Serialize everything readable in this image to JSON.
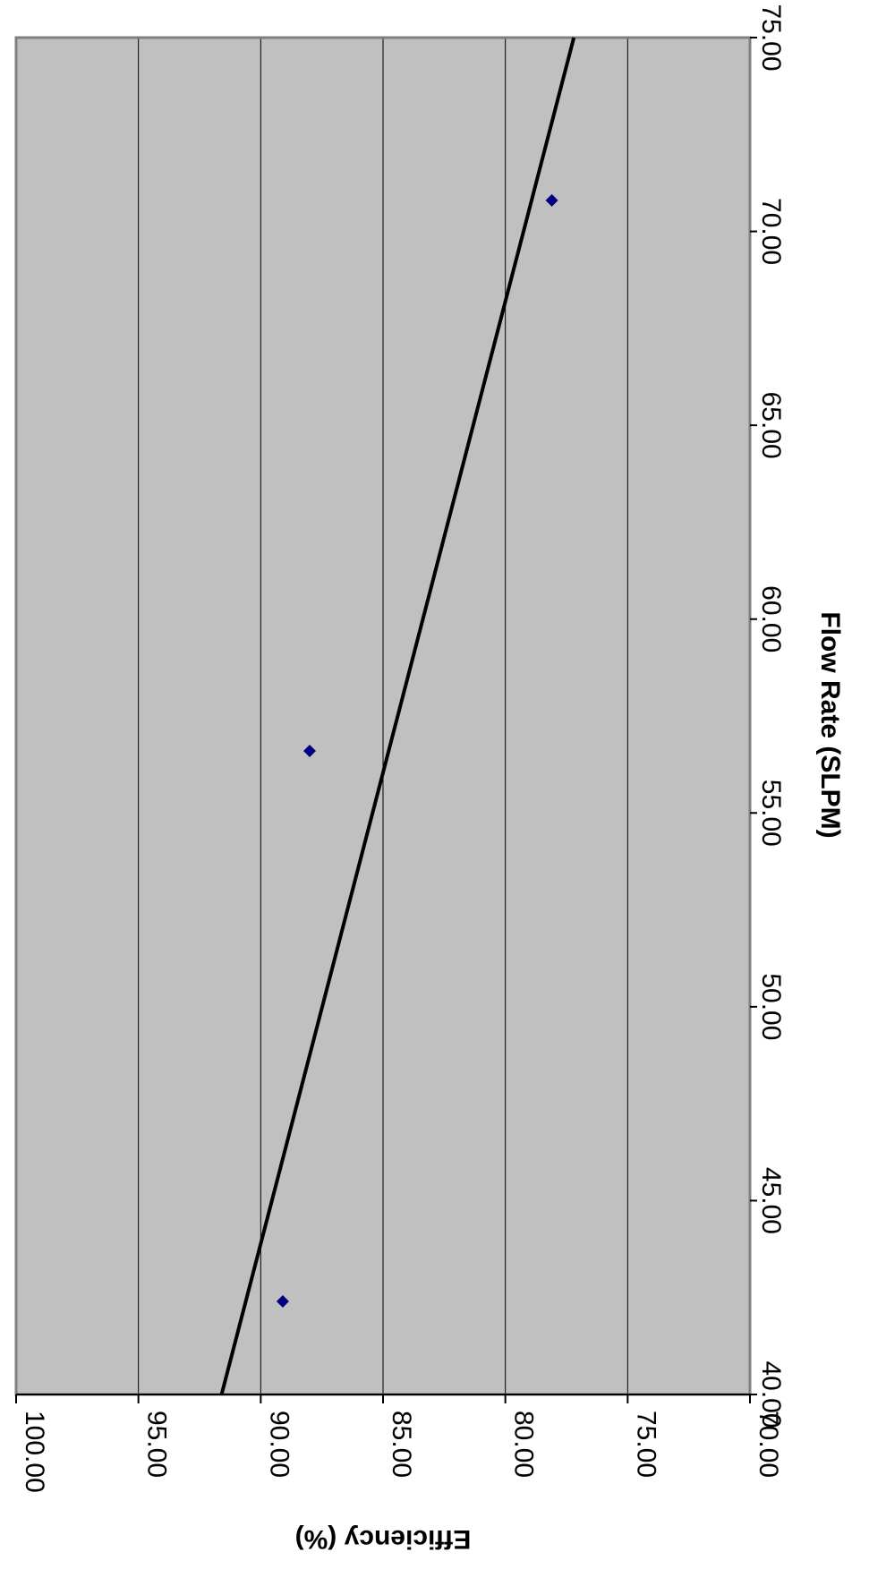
{
  "chart_data": {
    "type": "scatter",
    "orientation": "rotated-90-clockwise",
    "title": "",
    "xlabel": "Flow Rate (SLPM)",
    "ylabel": "Efficiency (%)",
    "xlim": [
      40,
      75
    ],
    "ylim": [
      70,
      100
    ],
    "x_ticks": [
      "40.00",
      "45.00",
      "50.00",
      "55.00",
      "60.00",
      "65.00",
      "70.00",
      "75.00"
    ],
    "y_ticks": [
      "70.00",
      "75.00",
      "80.00",
      "85.00",
      "90.00",
      "95.00",
      "100.00"
    ],
    "grid": "horizontal major gridlines at each y tick",
    "legend": "none",
    "plot_background": "#C0C0C0",
    "marker_color": "#000080",
    "trendline_color": "#000000",
    "series": [
      {
        "points": [
          {
            "x": 42.4,
            "y": 89.1
          },
          {
            "x": 56.6,
            "y": 88.0
          },
          {
            "x": 70.8,
            "y": 78.1
          }
        ]
      }
    ],
    "trendline": {
      "type": "linear",
      "points": [
        {
          "x": 40.0,
          "y": 91.6
        },
        {
          "x": 75.0,
          "y": 77.2
        }
      ]
    }
  }
}
